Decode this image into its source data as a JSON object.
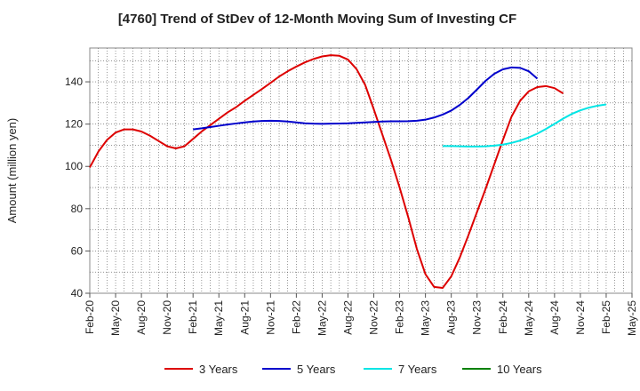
{
  "chart_data": {
    "type": "line",
    "title": "[4760]  Trend of StDev of 12-Month Moving Sum of Investing CF",
    "ylabel": "Amount (million yen)",
    "xlabel": "",
    "ylim": [
      40,
      156
    ],
    "yticks": [
      40,
      60,
      80,
      100,
      120,
      140
    ],
    "x_ticks": [
      "Feb-20",
      "May-20",
      "Aug-20",
      "Nov-20",
      "Feb-21",
      "May-21",
      "Aug-21",
      "Nov-21",
      "Feb-22",
      "May-22",
      "Aug-22",
      "Nov-22",
      "Feb-23",
      "May-23",
      "Aug-23",
      "Nov-23",
      "Feb-24",
      "May-24",
      "Aug-24",
      "Nov-24",
      "Feb-25",
      "May-25"
    ],
    "grid": true,
    "legend_position": "bottom",
    "series": [
      {
        "name": "3 Years",
        "color": "#dd0000",
        "start": "Feb-20",
        "values": [
          99.5,
          107,
          112.5,
          116,
          117.5,
          117.5,
          116.5,
          114.5,
          112,
          109.5,
          108.5,
          109.5,
          113,
          116.5,
          119.5,
          122.5,
          125.5,
          128,
          131,
          133.8,
          136.6,
          139.5,
          142.5,
          145,
          147.2,
          149.2,
          150.8,
          152,
          152.6,
          152.3,
          150.5,
          146,
          138.5,
          127,
          115,
          103,
          90,
          76,
          61,
          49,
          43,
          42.5,
          48,
          57,
          67.5,
          78.5,
          89.5,
          101,
          112.5,
          123.5,
          131,
          135.5,
          137.5,
          138,
          137,
          134.5
        ]
      },
      {
        "name": "5 Years",
        "color": "#0000cc",
        "start": "Feb-21",
        "values": [
          117.5,
          118,
          118.6,
          119.2,
          119.8,
          120.3,
          120.8,
          121.2,
          121.5,
          121.6,
          121.5,
          121.2,
          120.8,
          120.4,
          120.2,
          120.1,
          120.2,
          120.3,
          120.4,
          120.6,
          120.8,
          121,
          121.2,
          121.3,
          121.3,
          121.4,
          121.6,
          122.1,
          123.1,
          124.5,
          126.4,
          129.1,
          132.4,
          136.4,
          140.5,
          143.8,
          145.9,
          146.8,
          146.6,
          145,
          141.5
        ]
      },
      {
        "name": "7 Years",
        "color": "#00e5e5",
        "start": "Jul-23",
        "values": [
          109.6,
          109.6,
          109.5,
          109.4,
          109.4,
          109.5,
          109.8,
          110.3,
          111.1,
          112.2,
          113.7,
          115.5,
          117.7,
          120.1,
          122.6,
          124.8,
          126.5,
          127.8,
          128.7,
          129.3
        ]
      },
      {
        "name": "10 Years",
        "color": "#008000",
        "start": "",
        "values": []
      }
    ]
  }
}
